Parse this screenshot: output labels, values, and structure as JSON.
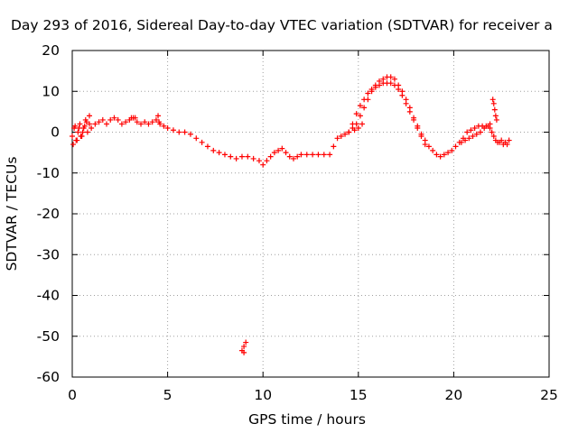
{
  "chart_data": {
    "type": "scatter",
    "title": "Day 293 of 2016, Sidereal Day-to-day VTEC variation (SDTVAR) for receiver a",
    "xlabel": "GPS time / hours",
    "ylabel": "SDTVAR / TECUs",
    "xlim": [
      0,
      25
    ],
    "ylim": [
      -60,
      20
    ],
    "xticks": [
      0,
      5,
      10,
      15,
      20,
      25
    ],
    "yticks": [
      -60,
      -50,
      -40,
      -30,
      -20,
      -10,
      0,
      10,
      20
    ],
    "grid": true,
    "marker": "plus",
    "series": [
      {
        "name": "SDTVAR",
        "color": "#ff0000",
        "x": [
          0.0,
          0.1,
          0.2,
          0.3,
          0.4,
          0.5,
          0.6,
          0.7,
          0.8,
          0.9,
          1.0,
          1.2,
          1.4,
          1.6,
          1.8,
          2.0,
          2.2,
          2.4,
          2.6,
          2.8,
          3.0,
          3.2,
          3.4,
          3.6,
          3.8,
          4.0,
          4.2,
          4.4,
          4.6,
          4.8,
          5.0,
          5.3,
          5.6,
          5.9,
          6.2,
          6.5,
          6.8,
          7.1,
          7.4,
          7.7,
          8.0,
          8.3,
          8.6,
          8.9,
          9.2,
          9.5,
          9.8,
          10.0,
          10.2,
          10.4,
          10.6,
          10.8,
          11.0,
          11.2,
          11.4,
          11.6,
          11.8,
          12.0,
          12.3,
          12.6,
          12.9,
          13.2,
          13.5,
          13.7,
          13.9,
          14.1,
          14.3,
          14.5,
          14.7,
          14.9,
          15.1,
          15.3,
          15.5,
          15.7,
          15.9,
          16.1,
          16.3,
          16.5,
          16.7,
          16.9,
          17.1,
          17.3,
          17.5,
          17.7,
          17.9,
          18.1,
          18.3,
          18.5,
          18.7,
          18.9,
          19.1,
          19.3,
          19.5,
          19.7,
          19.9,
          20.1,
          20.3,
          20.5,
          20.7,
          20.9,
          21.1,
          21.3,
          21.5,
          21.7,
          21.9,
          22.0,
          22.1,
          22.2,
          22.3,
          22.4,
          22.5,
          22.6,
          22.7,
          22.8,
          22.9,
          0.05,
          0.15,
          0.25,
          0.35,
          0.45,
          0.55,
          0.65,
          0.75,
          0.9,
          3.1,
          3.3,
          4.5,
          4.55,
          8.9,
          9.0,
          9.1,
          9.0,
          14.5,
          14.7,
          14.9,
          15.1,
          15.3,
          15.5,
          15.7,
          15.9,
          16.1,
          16.3,
          16.5,
          16.7,
          16.9,
          17.1,
          17.3,
          17.5,
          17.7,
          17.9,
          18.1,
          18.3,
          18.5,
          14.8,
          15.0,
          15.2,
          22.05,
          22.1,
          22.15,
          22.2,
          22.25,
          21.9,
          21.8,
          21.6,
          21.4,
          21.2,
          21.0,
          20.8,
          20.6,
          20.4
        ],
        "y": [
          -1,
          1,
          -2,
          0,
          2,
          -1,
          1,
          3,
          0,
          2,
          1,
          2,
          2.5,
          3,
          2,
          3,
          3.5,
          3,
          2,
          2.5,
          3,
          3.5,
          2.5,
          2,
          2.5,
          2,
          2.5,
          3,
          2,
          1.5,
          1,
          0.5,
          0,
          0,
          -0.5,
          -1.5,
          -2.5,
          -3.5,
          -4.5,
          -5,
          -5.5,
          -6,
          -6.5,
          -6,
          -6,
          -6.5,
          -7,
          -8,
          -7,
          -6,
          -5,
          -4.5,
          -4,
          -5,
          -6,
          -6.5,
          -6,
          -5.5,
          -5.5,
          -5.5,
          -5.5,
          -5.5,
          -5.5,
          -3.5,
          -1.5,
          -1,
          -0.5,
          0,
          1,
          2,
          4,
          6,
          8,
          10,
          11.5,
          12.5,
          13,
          13.5,
          13.5,
          13,
          11.5,
          10,
          8,
          6,
          3.5,
          1.5,
          -0.5,
          -2,
          -3.5,
          -4.5,
          -5.5,
          -6,
          -5.5,
          -5,
          -4.5,
          -3.5,
          -2.5,
          -1.5,
          0,
          0.5,
          1,
          1.5,
          1.5,
          1.5,
          1,
          0,
          -1,
          -2,
          -2.5,
          -2.5,
          -2,
          -3,
          -2.5,
          -3,
          -2,
          -3,
          1.5,
          -2,
          1,
          -1,
          0,
          1.5,
          2.5,
          4,
          3.5,
          3.5,
          4,
          2.5,
          -53.5,
          -52.5,
          -51.5,
          -54,
          0,
          2,
          4.5,
          6.5,
          8,
          9.5,
          10.5,
          11,
          11.5,
          12,
          12,
          12,
          11.5,
          10.5,
          9,
          7,
          5,
          3,
          1,
          -1,
          -3,
          0.5,
          1,
          2,
          8,
          7,
          5.5,
          4,
          3,
          2,
          1.5,
          1,
          0,
          -0.5,
          -1,
          -1.5,
          -2,
          -2.5
        ]
      }
    ]
  }
}
